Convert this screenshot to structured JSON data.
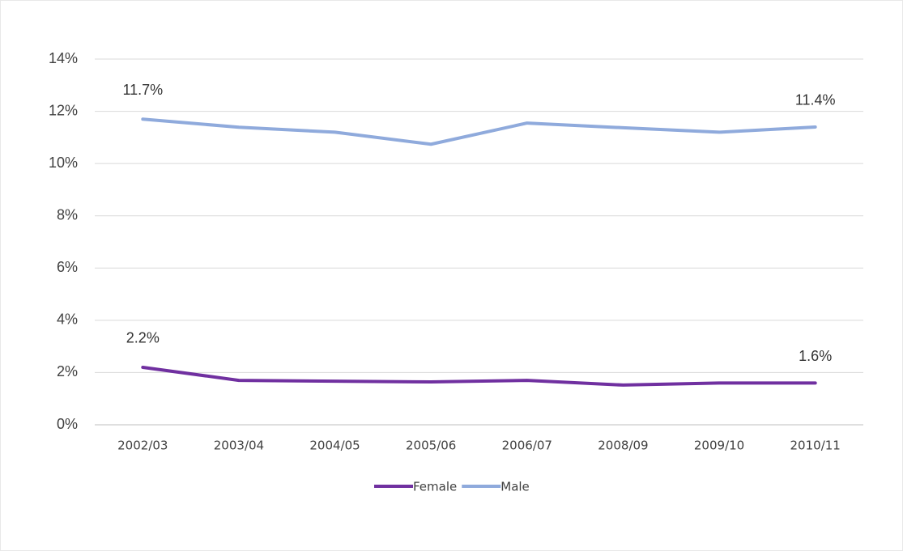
{
  "chart_data": {
    "type": "line",
    "categories": [
      "2002/03",
      "2003/04",
      "2004/05",
      "2005/06",
      "2006/07",
      "2008/09",
      "2009/10",
      "2010/11"
    ],
    "series": [
      {
        "name": "Female",
        "color": "#7030a0",
        "values": [
          2.2,
          1.7,
          1.67,
          1.64,
          1.7,
          1.52,
          1.6,
          1.6
        ],
        "value_labels": [
          "2.2%",
          null,
          null,
          null,
          null,
          null,
          null,
          "1.6%"
        ]
      },
      {
        "name": "Male",
        "color": "#8faadc",
        "values": [
          11.7,
          11.39,
          11.2,
          10.74,
          11.55,
          11.37,
          11.2,
          11.4
        ],
        "value_labels": [
          "11.7%",
          null,
          null,
          null,
          null,
          null,
          null,
          "11.4%"
        ]
      }
    ],
    "ylim": [
      0,
      14
    ],
    "yticks": [
      {
        "value": 0,
        "label": "0%"
      },
      {
        "value": 2,
        "label": "2%"
      },
      {
        "value": 4,
        "label": "4%"
      },
      {
        "value": 6,
        "label": "6%"
      },
      {
        "value": 8,
        "label": "8%"
      },
      {
        "value": 10,
        "label": "10%"
      },
      {
        "value": 12,
        "label": "12%"
      },
      {
        "value": 14,
        "label": "14%"
      }
    ],
    "grid": true,
    "legend": "bottom"
  }
}
